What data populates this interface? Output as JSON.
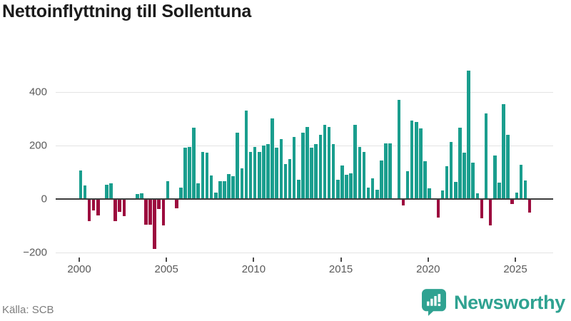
{
  "title": "Nettoinflyttning till Sollentuna",
  "source": "Källa: SCB",
  "logo": {
    "text": "Newsworthy",
    "icon": "newsworthy-bubble-bar-chart-icon"
  },
  "colors": {
    "positive_bar": "#1a9e8e",
    "negative_bar": "#9c0b3e",
    "zero_axis": "#3d3d3d",
    "gridline": "#e3e3e3",
    "tick_label": "#5a5a5a",
    "title_text": "#1b1b1b",
    "source_text": "#7d7d7d",
    "logo_teal": "#2fa291"
  },
  "chart_data": {
    "type": "bar",
    "title": "Nettoinflyttning till Sollentuna",
    "x_unit": "quarter",
    "start_year": 2000,
    "end_year": 2025,
    "grid": true,
    "legend": "none",
    "y_gridlines": [
      400,
      200,
      0,
      -200
    ],
    "y_tick_labels": [
      {
        "label": "400",
        "value": 400
      },
      {
        "label": "200",
        "value": 200
      },
      {
        "label": "0",
        "value": 0
      },
      {
        "label": "−200",
        "value": -200
      }
    ],
    "x_ticks": [
      {
        "label": "2000",
        "year": 2000
      },
      {
        "label": "2005",
        "year": 2005
      },
      {
        "label": "2010",
        "year": 2010
      },
      {
        "label": "2015",
        "year": 2015
      },
      {
        "label": "2020",
        "year": 2020
      },
      {
        "label": "2025",
        "year": 2025
      }
    ],
    "quarterly_values": [
      {
        "year": 2000,
        "q1": 108,
        "q2": 51,
        "q3": -79,
        "q4": -41
      },
      {
        "year": 2001,
        "q1": -59,
        "q2": 0,
        "q3": 53,
        "q4": 60
      },
      {
        "year": 2002,
        "q1": -80,
        "q2": -45,
        "q3": -61,
        "q4": 0
      },
      {
        "year": 2003,
        "q1": 0,
        "q2": 20,
        "q3": 22,
        "q4": -94
      },
      {
        "year": 2004,
        "q1": -94,
        "q2": -185,
        "q3": -34,
        "q4": -96
      },
      {
        "year": 2005,
        "q1": 68,
        "q2": 0,
        "q3": -32,
        "q4": 43
      },
      {
        "year": 2006,
        "q1": 193,
        "q2": 194,
        "q3": 268,
        "q4": 59
      },
      {
        "year": 2007,
        "q1": 175,
        "q2": 174,
        "q3": 89,
        "q4": 24
      },
      {
        "year": 2008,
        "q1": 66,
        "q2": 68,
        "q3": 93,
        "q4": 86
      },
      {
        "year": 2009,
        "q1": 247,
        "q2": 114,
        "q3": 330,
        "q4": 177
      },
      {
        "year": 2010,
        "q1": 194,
        "q2": 175,
        "q3": 201,
        "q4": 206
      },
      {
        "year": 2011,
        "q1": 302,
        "q2": 192,
        "q3": 223,
        "q4": 130
      },
      {
        "year": 2012,
        "q1": 150,
        "q2": 232,
        "q3": 73,
        "q4": 247
      },
      {
        "year": 2013,
        "q1": 270,
        "q2": 192,
        "q3": 206,
        "q4": 241
      },
      {
        "year": 2014,
        "q1": 277,
        "q2": 270,
        "q3": 206,
        "q4": 73
      },
      {
        "year": 2015,
        "q1": 126,
        "q2": 90,
        "q3": 97,
        "q4": 277
      },
      {
        "year": 2016,
        "q1": 194,
        "q2": 177,
        "q3": 42,
        "q4": 77
      },
      {
        "year": 2017,
        "q1": 35,
        "q2": 144,
        "q3": 207,
        "q4": 207
      },
      {
        "year": 2018,
        "q1": 0,
        "q2": 372,
        "q3": -20,
        "q4": 104
      },
      {
        "year": 2019,
        "q1": 293,
        "q2": 289,
        "q3": 265,
        "q4": 141
      },
      {
        "year": 2020,
        "q1": 39,
        "q2": 0,
        "q3": -67,
        "q4": 33
      },
      {
        "year": 2021,
        "q1": 124,
        "q2": 213,
        "q3": 65,
        "q4": 266
      },
      {
        "year": 2022,
        "q1": 173,
        "q2": 479,
        "q3": 135,
        "q4": 22
      },
      {
        "year": 2023,
        "q1": -69,
        "q2": 321,
        "q3": -96,
        "q4": 164
      },
      {
        "year": 2024,
        "q1": 61,
        "q2": 355,
        "q3": 240,
        "q4": -15
      },
      {
        "year": 2025,
        "q1": 24,
        "q2": 128,
        "q3": 70,
        "q4": -47
      }
    ]
  }
}
